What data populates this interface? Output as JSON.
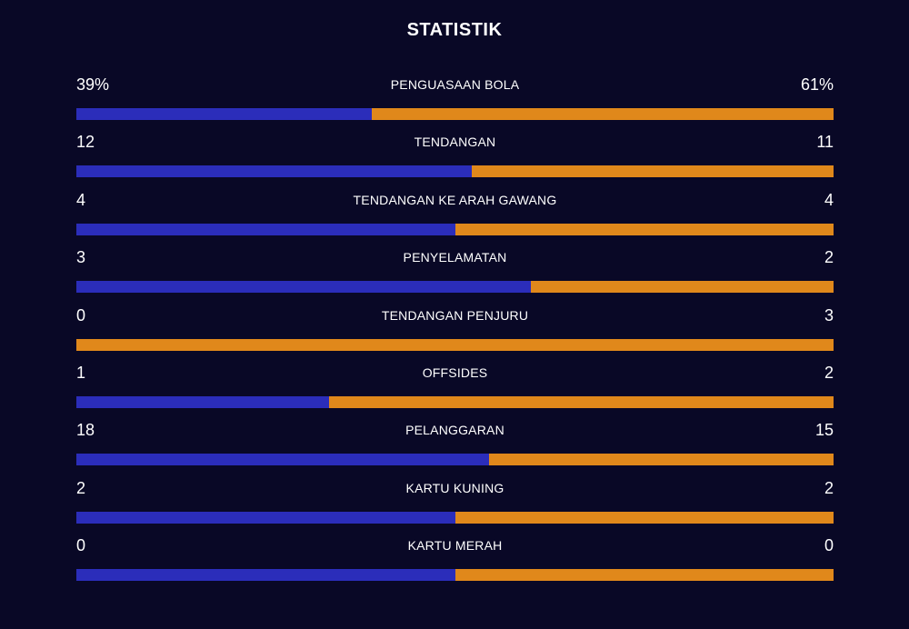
{
  "header": {
    "title": "STATISTIK"
  },
  "colors": {
    "home": "#2b2dba",
    "away": "#e0881b",
    "background": "#090826"
  },
  "stats": [
    {
      "name": "PENGUASAAN BOLA",
      "home": "39%",
      "away": "61%",
      "home_share": 0.39
    },
    {
      "name": "TENDANGAN",
      "home": "12",
      "away": "11",
      "home_share": 0.5217
    },
    {
      "name": "TENDANGAN KE ARAH GAWANG",
      "home": "4",
      "away": "4",
      "home_share": 0.5
    },
    {
      "name": "PENYELAMATAN",
      "home": "3",
      "away": "2",
      "home_share": 0.6
    },
    {
      "name": "TENDANGAN PENJURU",
      "home": "0",
      "away": "3",
      "home_share": 0.0
    },
    {
      "name": "OFFSIDES",
      "home": "1",
      "away": "2",
      "home_share": 0.3333
    },
    {
      "name": "PELANGGARAN",
      "home": "18",
      "away": "15",
      "home_share": 0.5455
    },
    {
      "name": "KARTU KUNING",
      "home": "2",
      "away": "2",
      "home_share": 0.5
    },
    {
      "name": "KARTU MERAH",
      "home": "0",
      "away": "0",
      "home_share": 0.5
    }
  ]
}
